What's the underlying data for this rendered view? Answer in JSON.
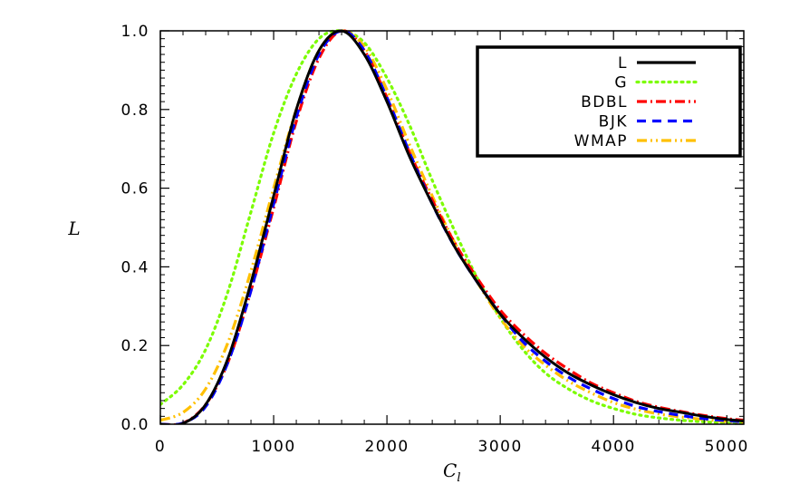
{
  "chart_data": {
    "type": "line",
    "xlabel": "C",
    "xlabel_sub": "l",
    "ylabel": "L",
    "xlim": [
      0,
      5150
    ],
    "ylim": [
      0,
      1.0
    ],
    "x_ticks": [
      "0",
      "1000",
      "2000",
      "3000",
      "4000",
      "5000"
    ],
    "y_ticks": [
      "0.0",
      "0.2",
      "0.4",
      "0.6",
      "0.8",
      "1.0"
    ],
    "legend_position": "top-right",
    "series": [
      {
        "name": "L",
        "color": "#000000",
        "style": "solid",
        "x": [
          0,
          200,
          400,
          600,
          800,
          1000,
          1200,
          1400,
          1600,
          1800,
          2000,
          2200,
          2400,
          2600,
          2800,
          3000,
          3200,
          3400,
          3600,
          3800,
          4000,
          4200,
          4400,
          4600,
          4800,
          5000,
          5150
        ],
        "y": [
          0.0,
          0.002,
          0.05,
          0.17,
          0.36,
          0.58,
          0.8,
          0.95,
          1.0,
          0.94,
          0.82,
          0.68,
          0.56,
          0.45,
          0.36,
          0.28,
          0.22,
          0.17,
          0.13,
          0.1,
          0.075,
          0.055,
          0.04,
          0.03,
          0.02,
          0.012,
          0.008
        ]
      },
      {
        "name": "G",
        "color": "#7CFC00",
        "style": "dotted",
        "x": [
          0,
          200,
          400,
          600,
          800,
          1000,
          1200,
          1400,
          1600,
          1800,
          2000,
          2200,
          2400,
          2600,
          2800,
          3000,
          3200,
          3400,
          3600,
          3800,
          4000,
          4200,
          4400,
          4600,
          4800,
          5000,
          5150
        ],
        "y": [
          0.05,
          0.1,
          0.19,
          0.34,
          0.54,
          0.74,
          0.89,
          0.98,
          1.0,
          0.97,
          0.88,
          0.76,
          0.62,
          0.49,
          0.37,
          0.27,
          0.19,
          0.13,
          0.09,
          0.06,
          0.04,
          0.025,
          0.016,
          0.01,
          0.006,
          0.003,
          0.002
        ]
      },
      {
        "name": "BDBL",
        "color": "#FF0000",
        "style": "dash-dot",
        "x": [
          0,
          200,
          400,
          600,
          800,
          1000,
          1200,
          1400,
          1600,
          1800,
          2000,
          2200,
          2400,
          2600,
          2800,
          3000,
          3200,
          3400,
          3600,
          3800,
          4000,
          4200,
          4400,
          4600,
          4800,
          5000,
          5150
        ],
        "y": [
          0.0,
          0.003,
          0.05,
          0.16,
          0.34,
          0.55,
          0.77,
          0.93,
          1.0,
          0.95,
          0.83,
          0.69,
          0.57,
          0.46,
          0.37,
          0.29,
          0.23,
          0.18,
          0.14,
          0.105,
          0.08,
          0.058,
          0.043,
          0.032,
          0.022,
          0.014,
          0.01
        ]
      },
      {
        "name": "BJK",
        "color": "#0000FF",
        "style": "dashed",
        "x": [
          0,
          200,
          400,
          600,
          800,
          1000,
          1200,
          1400,
          1600,
          1800,
          2000,
          2200,
          2400,
          2600,
          2800,
          3000,
          3200,
          3400,
          3600,
          3800,
          4000,
          4200,
          4400,
          4600,
          4800,
          5000,
          5150
        ],
        "y": [
          0.0,
          0.003,
          0.045,
          0.16,
          0.34,
          0.56,
          0.78,
          0.94,
          1.0,
          0.95,
          0.83,
          0.69,
          0.56,
          0.45,
          0.36,
          0.28,
          0.21,
          0.16,
          0.12,
          0.09,
          0.065,
          0.045,
          0.032,
          0.022,
          0.014,
          0.009,
          0.006
        ]
      },
      {
        "name": "WMAP",
        "color": "#FFC000",
        "style": "dash-dot-dot",
        "x": [
          0,
          200,
          400,
          600,
          800,
          1000,
          1200,
          1400,
          1600,
          1800,
          2000,
          2200,
          2400,
          2600,
          2800,
          3000,
          3200,
          3400,
          3600,
          3800,
          4000,
          4200,
          4400,
          4600,
          4800,
          5000,
          5150
        ],
        "y": [
          0.01,
          0.03,
          0.09,
          0.21,
          0.39,
          0.6,
          0.8,
          0.95,
          1.0,
          0.96,
          0.85,
          0.71,
          0.58,
          0.46,
          0.36,
          0.27,
          0.2,
          0.15,
          0.11,
          0.08,
          0.055,
          0.038,
          0.026,
          0.018,
          0.012,
          0.007,
          0.005
        ]
      }
    ]
  }
}
